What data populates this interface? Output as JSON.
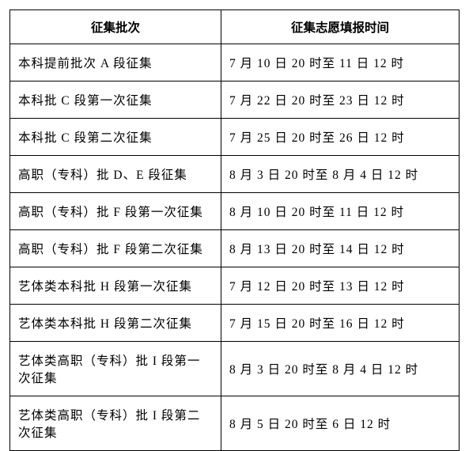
{
  "table": {
    "type": "table",
    "border_color": "#000000",
    "background_color": "#ffffff",
    "text_color": "#000000",
    "header_fontweight": "bold",
    "cell_fontsize": 15.5,
    "columns": [
      {
        "key": "batch",
        "label": "征集批次",
        "width_pct": 47,
        "align": "center"
      },
      {
        "key": "time",
        "label": "征集志愿填报时间",
        "width_pct": 53,
        "align": "center"
      }
    ],
    "rows": [
      {
        "batch": "本科提前批次 A 段征集",
        "time": "7 月 10 日 20 时至 11 日 12 时"
      },
      {
        "batch": "本科批 C 段第一次征集",
        "time": "7 月 22 日 20 时至 23 日 12 时"
      },
      {
        "batch": "本科批 C 段第二次征集",
        "time": "7 月 25 日 20 时至 26 日 12 时"
      },
      {
        "batch": "高职（专科）批 D、E 段征集",
        "time": "8 月 3 日 20 时至 8 月 4 日 12 时"
      },
      {
        "batch": "高职（专科）批 F 段第一次征集",
        "time": "8 月 10 日 20 时至 11 日 12 时"
      },
      {
        "batch": "高职（专科）批 F 段第二次征集",
        "time": "8 月 13 日 20 时至 14 日 12 时"
      },
      {
        "batch": "艺体类本科批 H 段第一次征集",
        "time": "7 月 12 日 20 时至 13 日 12 时"
      },
      {
        "batch": "艺体类本科批 H 段第二次征集",
        "time": "7 月 15 日 20 时至 16 日 12 时"
      },
      {
        "batch": "艺体类高职（专科）批 I 段第一次征集",
        "time": "8 月 3 日 20 时至 8 月 4 日 12 时"
      },
      {
        "batch": "艺体类高职（专科）批 I 段第二次征集",
        "time": "8 月 5 日 20 时至 6 日 12 时"
      }
    ]
  }
}
